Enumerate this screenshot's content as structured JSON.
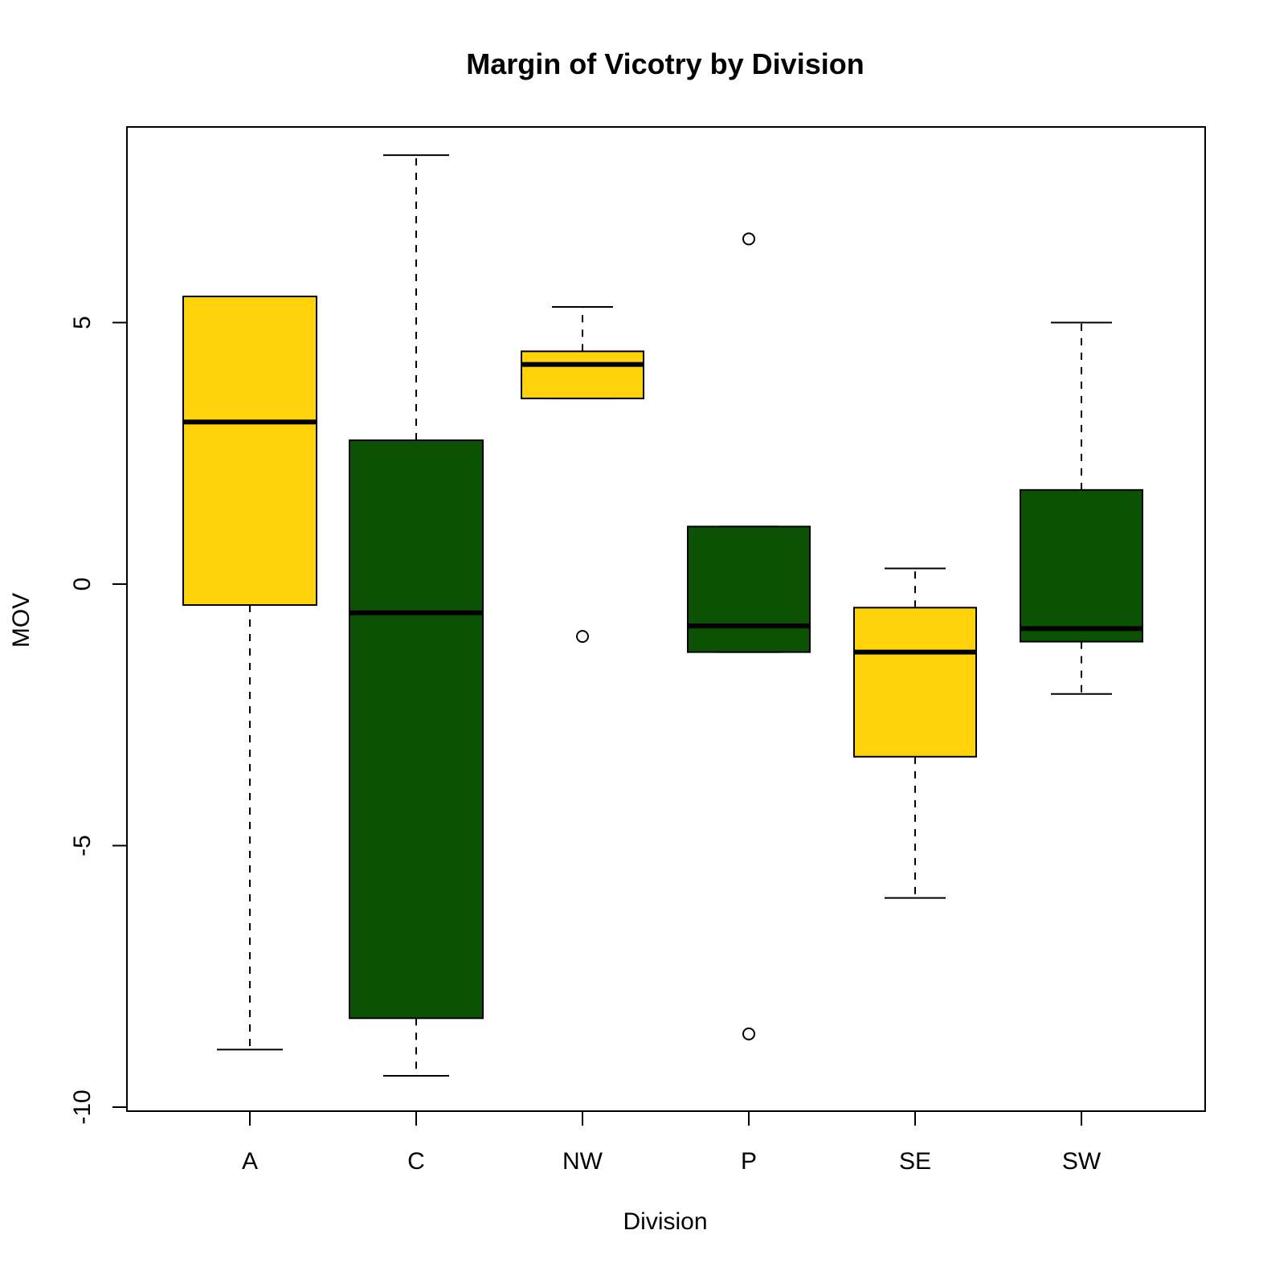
{
  "chart_data": {
    "type": "boxplot",
    "title": "Margin of Vicotry by Division",
    "xlabel": "Division",
    "ylabel": "MOV",
    "ylim": [
      -10,
      8.8
    ],
    "yticks": [
      -10,
      -5,
      0,
      5
    ],
    "grid": false,
    "legend": "none",
    "categories": [
      "A",
      "C",
      "NW",
      "P",
      "SE",
      "SW"
    ],
    "colors": [
      "#FFD20A",
      "#0C5205",
      "#FFD20A",
      "#0C5205",
      "#FFD20A",
      "#0C5205"
    ],
    "boxes": [
      {
        "name": "A",
        "whisker_low": -8.9,
        "q1": -0.4,
        "median": 3.1,
        "q3": 5.5,
        "whisker_high": 5.5,
        "outliers": []
      },
      {
        "name": "C",
        "whisker_low": -9.4,
        "q1": -8.3,
        "median": -0.55,
        "q3": 2.75,
        "whisker_high": 8.2,
        "outliers": []
      },
      {
        "name": "NW",
        "whisker_low": 3.55,
        "q1": 3.55,
        "median": 4.2,
        "q3": 4.45,
        "whisker_high": 5.3,
        "outliers": [
          -1.0
        ]
      },
      {
        "name": "P",
        "whisker_low": -1.3,
        "q1": -1.3,
        "median": -0.8,
        "q3": 1.1,
        "whisker_high": 1.1,
        "outliers": [
          6.6,
          -8.6
        ]
      },
      {
        "name": "SE",
        "whisker_low": -6.0,
        "q1": -3.3,
        "median": -1.3,
        "q3": -0.45,
        "whisker_high": 0.3,
        "outliers": []
      },
      {
        "name": "SW",
        "whisker_low": -2.1,
        "q1": -1.1,
        "median": -0.85,
        "q3": 1.8,
        "whisker_high": 5.0,
        "outliers": []
      }
    ]
  }
}
